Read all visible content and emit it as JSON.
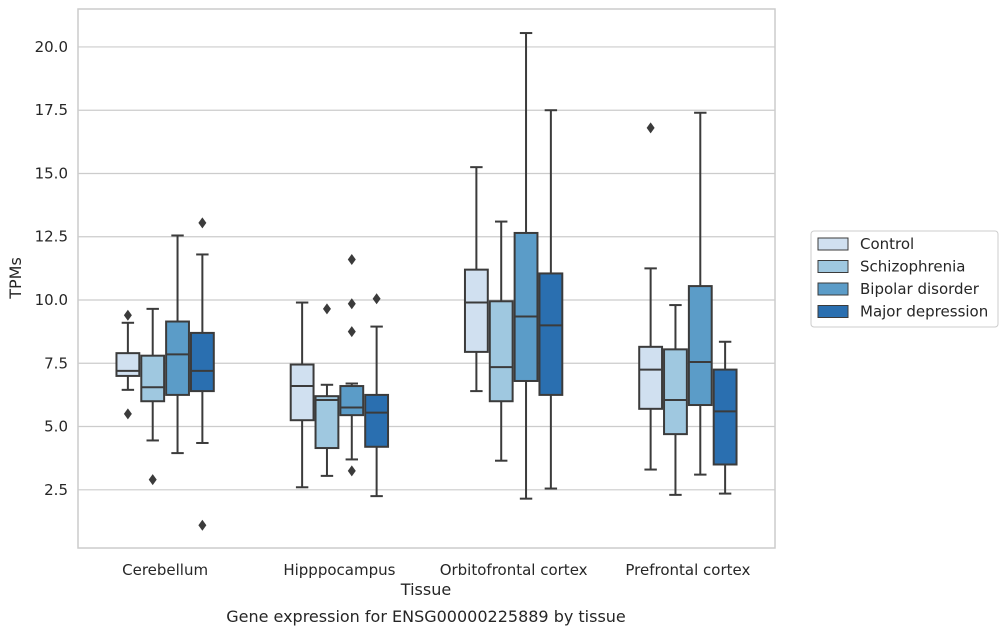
{
  "chart_data": {
    "type": "box",
    "title": "Gene expression for ENSG00000225889 by tissue",
    "xlabel": "Tissue",
    "ylabel": "TPMs",
    "ylim": [
      0.2,
      21.5
    ],
    "yticks": [
      "2.5",
      "5.0",
      "7.5",
      "10.0",
      "12.5",
      "15.0",
      "17.5",
      "20.0"
    ],
    "categories": [
      "Cerebellum",
      "Hipppocampus",
      "Orbitofrontal cortex",
      "Prefrontal cortex"
    ],
    "grid": "horizontal",
    "legend_position": "right",
    "series": [
      {
        "name": "Control",
        "color": "#d0e0f0",
        "boxes": [
          {
            "whislo": 6.45,
            "q1": 7.0,
            "med": 7.2,
            "q3": 7.9,
            "whishi": 9.1,
            "fliers": [
              9.4,
              5.5
            ]
          },
          {
            "whislo": 2.6,
            "q1": 5.25,
            "med": 6.6,
            "q3": 7.45,
            "whishi": 9.9,
            "fliers": []
          },
          {
            "whislo": 6.4,
            "q1": 7.95,
            "med": 9.9,
            "q3": 11.2,
            "whishi": 15.25,
            "fliers": []
          },
          {
            "whislo": 3.3,
            "q1": 5.7,
            "med": 7.25,
            "q3": 8.15,
            "whishi": 11.25,
            "fliers": [
              16.8
            ]
          }
        ]
      },
      {
        "name": "Schizophrenia",
        "color": "#9fc8e0",
        "boxes": [
          {
            "whislo": 4.45,
            "q1": 6.0,
            "med": 6.55,
            "q3": 7.8,
            "whishi": 9.65,
            "fliers": [
              2.9
            ]
          },
          {
            "whislo": 3.05,
            "q1": 4.15,
            "med": 6.05,
            "q3": 6.2,
            "whishi": 6.65,
            "fliers": [
              9.65
            ]
          },
          {
            "whislo": 3.65,
            "q1": 6.0,
            "med": 7.35,
            "q3": 9.95,
            "whishi": 13.1,
            "fliers": []
          },
          {
            "whislo": 2.3,
            "q1": 4.7,
            "med": 6.05,
            "q3": 8.05,
            "whishi": 9.8,
            "fliers": []
          }
        ]
      },
      {
        "name": "Bipolar disorder",
        "color": "#5b9cc8",
        "boxes": [
          {
            "whislo": 3.95,
            "q1": 6.25,
            "med": 7.85,
            "q3": 9.15,
            "whishi": 12.55,
            "fliers": []
          },
          {
            "whislo": 3.7,
            "q1": 5.45,
            "med": 5.75,
            "q3": 6.6,
            "whishi": 6.7,
            "fliers": [
              11.6,
              9.85,
              8.75,
              3.25
            ]
          },
          {
            "whislo": 2.15,
            "q1": 6.8,
            "med": 9.35,
            "q3": 12.65,
            "whishi": 20.55,
            "fliers": []
          },
          {
            "whislo": 3.1,
            "q1": 5.85,
            "med": 7.55,
            "q3": 10.55,
            "whishi": 17.4,
            "fliers": []
          }
        ]
      },
      {
        "name": "Major depression",
        "color": "#2a6fb0",
        "boxes": [
          {
            "whislo": 4.35,
            "q1": 6.4,
            "med": 7.2,
            "q3": 8.7,
            "whishi": 11.8,
            "fliers": [
              13.05,
              1.1
            ]
          },
          {
            "whislo": 2.25,
            "q1": 4.2,
            "med": 5.55,
            "q3": 6.25,
            "whishi": 8.95,
            "fliers": [
              10.05
            ]
          },
          {
            "whislo": 2.55,
            "q1": 6.25,
            "med": 9.0,
            "q3": 11.05,
            "whishi": 17.5,
            "fliers": []
          },
          {
            "whislo": 2.35,
            "q1": 3.5,
            "med": 5.6,
            "q3": 7.25,
            "whishi": 8.35,
            "fliers": []
          }
        ]
      }
    ]
  }
}
